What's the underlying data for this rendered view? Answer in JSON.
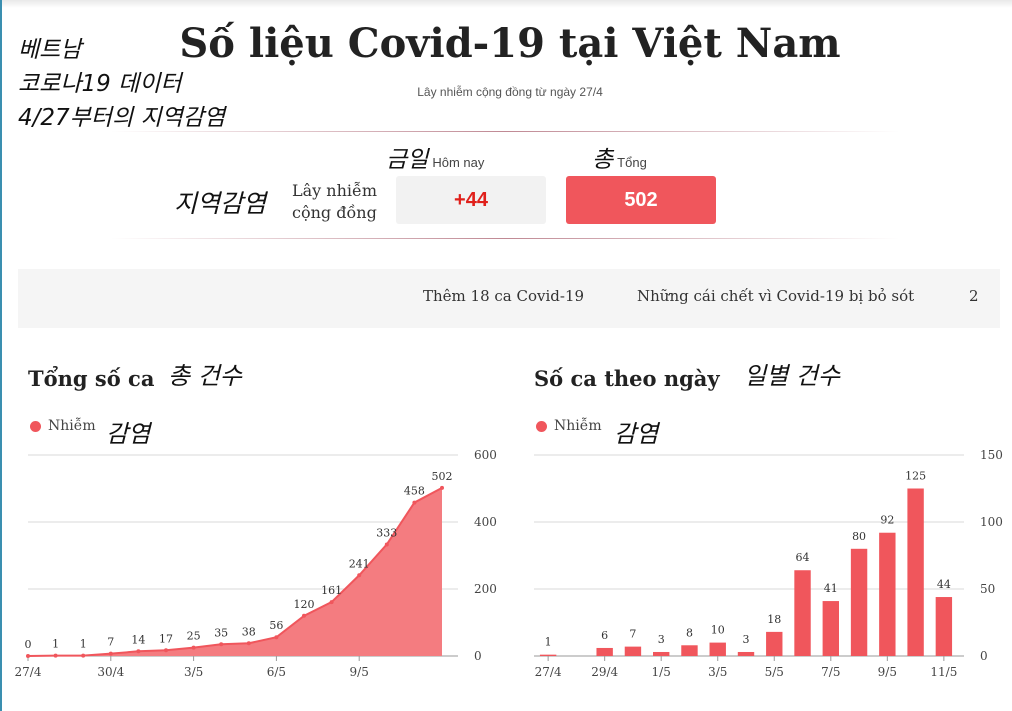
{
  "annotations": {
    "line1": "베트남",
    "line2": "코로나19 데이터",
    "line3": "4/27부터의 지역감염",
    "today_ko": "금일",
    "total_ko": "총",
    "row_ko": "지역감염",
    "chart_total_ko": "총 건수",
    "chart_daily_ko": "일별 건수",
    "legend_ko": "감염"
  },
  "header": {
    "title": "Số liệu Covid-19 tại Việt Nam",
    "subtitle": "Lây nhiễm cộng đồng từ ngày 27/4"
  },
  "summary": {
    "today_label": "Hôm nay",
    "total_label": "Tổng",
    "row_label": "Lây nhiễm cộng đồng",
    "today_value": "+44",
    "total_value": "502"
  },
  "news": [
    {
      "label": "Thêm 18 ca Covid-19"
    },
    {
      "label": "Những cái chết vì Covid-19 bị bỏ sót"
    },
    {
      "label": "2"
    }
  ],
  "colors": {
    "accent": "#f0565c",
    "today_text": "#e0201b",
    "area_fill": "#f47c80"
  },
  "chart_data": [
    {
      "type": "area",
      "title": "Tổng số ca",
      "legend": [
        "Nhiễm"
      ],
      "legend_position": "top-left",
      "y_axis_position": "right",
      "ylim": [
        0,
        600
      ],
      "yticks": [
        0,
        200,
        400,
        600
      ],
      "x_tick_labels": [
        "27/4",
        "30/4",
        "3/5",
        "6/5",
        "9/5"
      ],
      "x_tick_indices": [
        0,
        3,
        6,
        9,
        12
      ],
      "series": [
        {
          "name": "Nhiễm",
          "values": [
            0,
            1,
            1,
            7,
            14,
            17,
            25,
            35,
            38,
            56,
            120,
            161,
            241,
            333,
            458,
            502
          ]
        }
      ],
      "value_labels": [
        "0",
        "1",
        "1",
        "7",
        "14",
        "17",
        "25",
        "35",
        "38",
        "56",
        "120",
        "161",
        "241",
        "333",
        "458",
        "502"
      ],
      "grid": true
    },
    {
      "type": "bar",
      "title": "Số ca theo ngày",
      "legend": [
        "Nhiễm"
      ],
      "legend_position": "top-left",
      "y_axis_position": "right",
      "ylim": [
        0,
        150
      ],
      "yticks": [
        0,
        50,
        100,
        150
      ],
      "x_tick_labels": [
        "27/4",
        "29/4",
        "1/5",
        "3/5",
        "5/5",
        "7/5",
        "9/5",
        "11/5"
      ],
      "x_tick_indices": [
        0,
        2,
        4,
        6,
        8,
        10,
        12,
        14
      ],
      "series": [
        {
          "name": "Nhiễm",
          "values": [
            1,
            0,
            6,
            7,
            3,
            8,
            10,
            3,
            18,
            64,
            41,
            80,
            92,
            125,
            44
          ]
        }
      ],
      "value_labels": [
        "1",
        "",
        "6",
        "7",
        "3",
        "8",
        "10",
        "3",
        "18",
        "64",
        "41",
        "80",
        "92",
        "125",
        "44"
      ],
      "grid": true
    }
  ]
}
